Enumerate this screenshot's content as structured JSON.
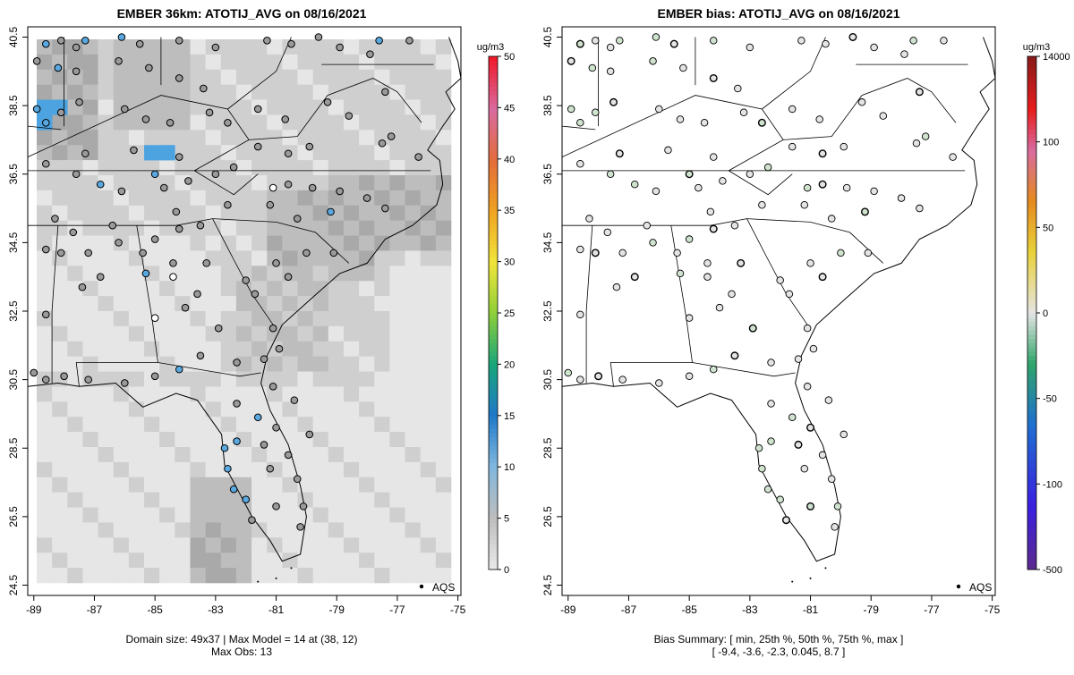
{
  "left_panel": {
    "title": "EMBER 36km: ATOTIJ_AVG on 08/16/2021",
    "colorbar_unit": "ug/m3",
    "colorbar_ticks": [
      "0",
      "5",
      "10",
      "15",
      "20",
      "25",
      "30",
      "35",
      "40",
      "45",
      "50"
    ],
    "footer_line1": "Domain size: 49x37 | Max Model = 14 at (38, 12)",
    "footer_line2": "Max Obs: 13",
    "legend_label": "AQS"
  },
  "right_panel": {
    "title": "EMBER bias: ATOTIJ_AVG on 08/16/2021",
    "colorbar_unit": "ug/m3",
    "colorbar_ticks": [
      "14000",
      "100",
      "50",
      "0",
      "-50",
      "-100",
      "-500"
    ],
    "footer_line1": "Bias Summary: [ min, 25th %, 50th %, 75th %, max ]",
    "footer_line2": "[ -9.4,   -3.6,   -2.3,   0.045,   8.7 ]",
    "legend_label": "AQS"
  },
  "axes": {
    "lon_ticks": [
      "-89",
      "-87",
      "-85",
      "-83",
      "-81",
      "-79",
      "-77",
      "-75"
    ],
    "lat_ticks": [
      "40.5",
      "38.5",
      "36.5",
      "34.5",
      "32.5",
      "30.5",
      "28.5",
      "26.5",
      "24.5"
    ],
    "lon_range": [
      -89.2,
      -74.9
    ],
    "lat_range": [
      24.2,
      40.8
    ]
  },
  "colors": {
    "model_light": "#e6e6e6",
    "model_mid": "#cfcfcf",
    "model_dark": "#a9a9a9",
    "model_blue": "#4da3df",
    "obs_gray": "#9a9a9a",
    "obs_blue": "#5aa8e0",
    "bias_site": "#e4e4e4",
    "bias_site_green": "#cfe3cf"
  },
  "chart_data": [
    {
      "type": "heatmap",
      "title": "EMBER 36km: ATOTIJ_AVG on 08/16/2021",
      "xlabel": "",
      "ylabel": "",
      "xlim": [
        -89.2,
        -74.9
      ],
      "ylim": [
        24.2,
        40.8
      ],
      "colorbar": {
        "unit": "ug/m3",
        "range": [
          0,
          50
        ]
      },
      "notes": [
        "Domain size: 49x37 | Max Model = 14 at (38, 12)",
        "Max Obs: 13"
      ]
    },
    {
      "type": "scatter",
      "title": "EMBER bias: ATOTIJ_AVG on 08/16/2021",
      "xlabel": "",
      "ylabel": "",
      "xlim": [
        -89.2,
        -74.9
      ],
      "ylim": [
        24.2,
        40.8
      ],
      "colorbar": {
        "unit": "ug/m3",
        "ticks": [
          14000,
          100,
          50,
          0,
          -50,
          -100,
          -500
        ]
      },
      "summary": {
        "min": -9.4,
        "p25": -3.6,
        "p50": -2.3,
        "p75": 0.045,
        "max": 8.7
      }
    }
  ]
}
